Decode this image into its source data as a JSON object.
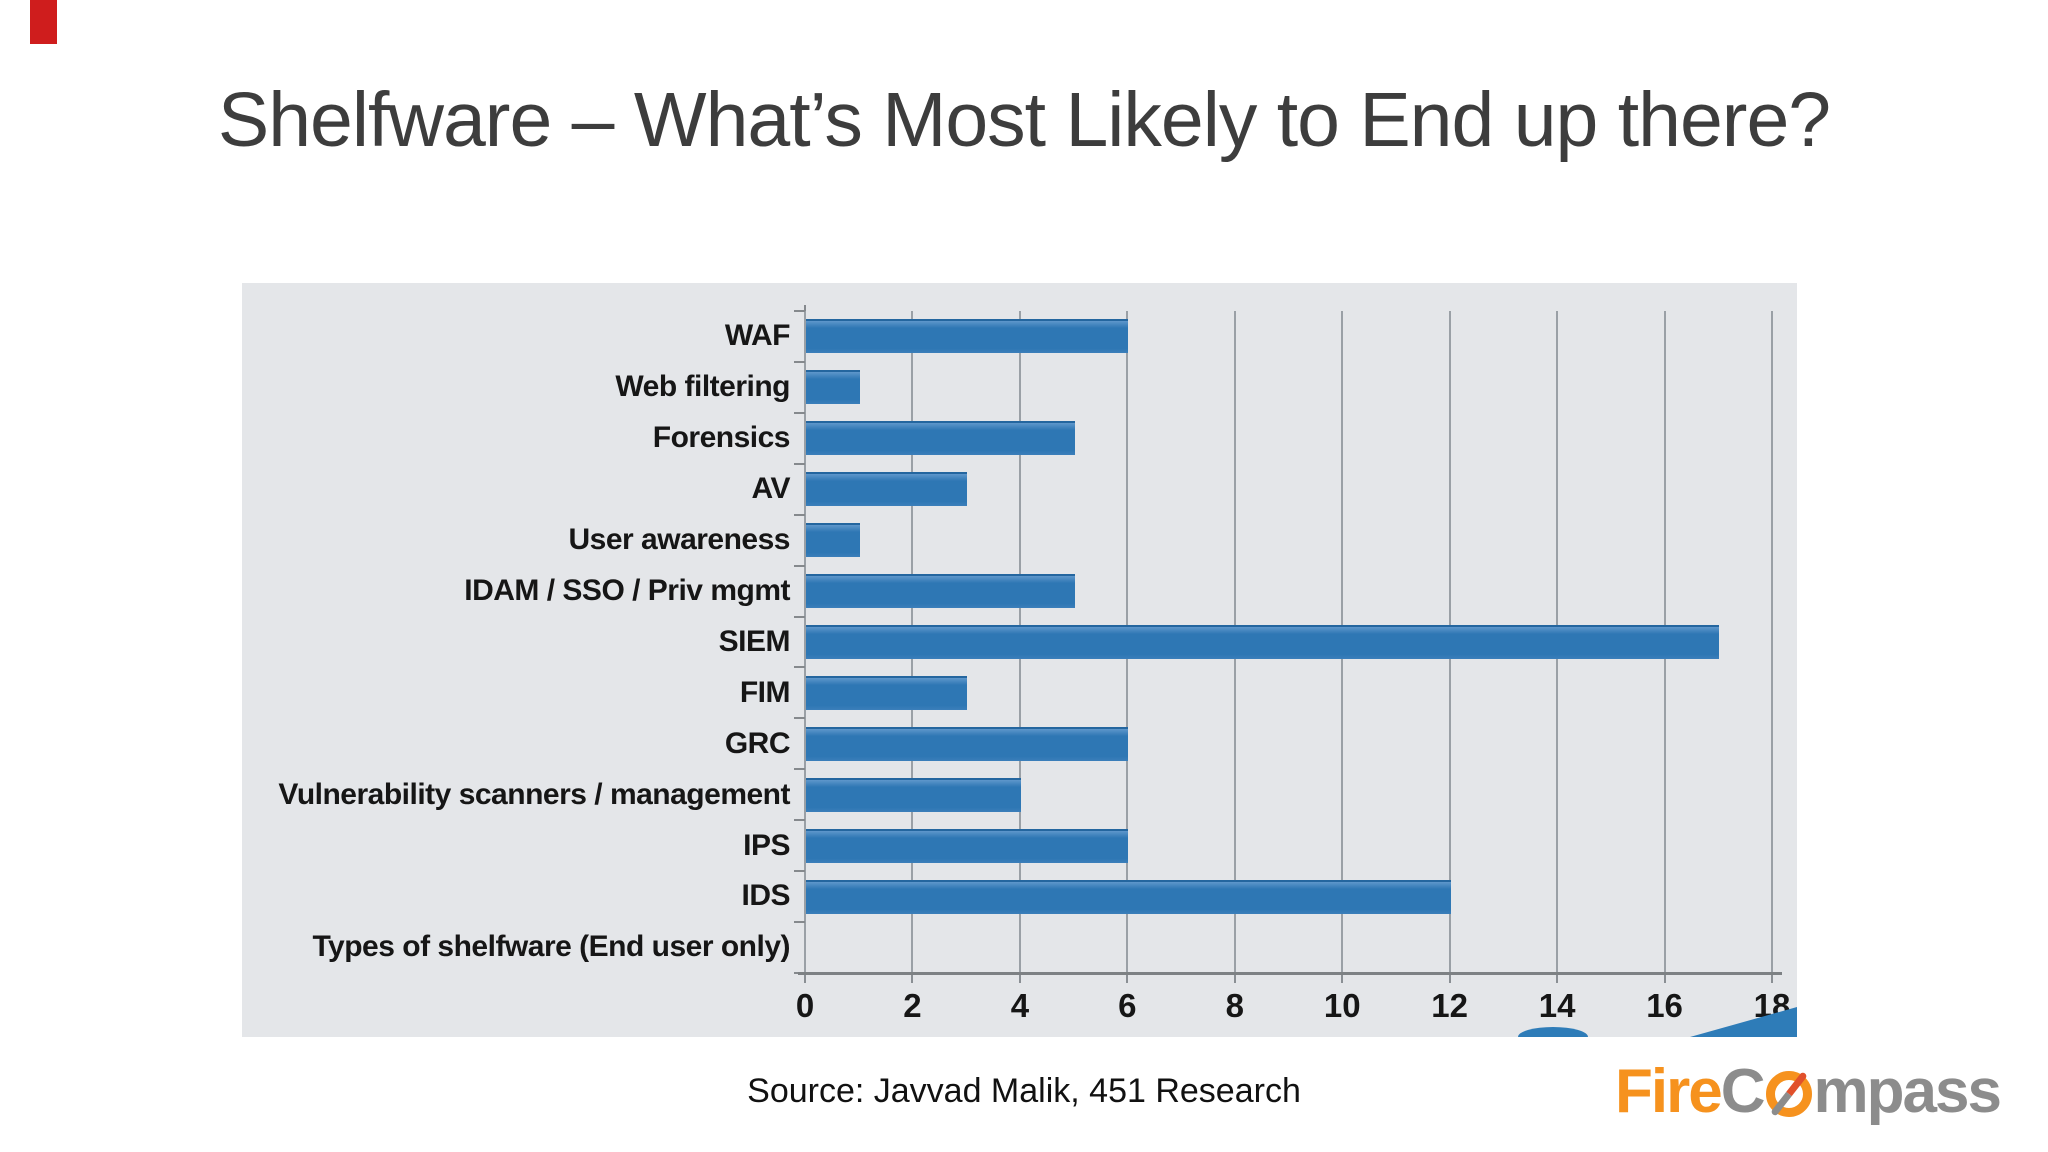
{
  "slide": {
    "title": "Shelfware – What’s Most Likely to End up there?",
    "source": "Source: Javvad Malik, 451 Research",
    "logo": {
      "fire": "Fire",
      "c": "C",
      "mpass": "mpass"
    },
    "colors": {
      "brand_orange": "#f6921e",
      "brand_gray": "#8c8c8c",
      "red_marker": "#cf1d1d",
      "panel_background": "#e4e6e9"
    }
  },
  "chart_data": {
    "type": "bar",
    "orientation": "horizontal",
    "title": "",
    "xlabel": "",
    "ylabel": "",
    "categories": [
      "WAF",
      "Web filtering",
      "Forensics",
      "AV",
      "User awareness",
      "IDAM / SSO / Priv mgmt",
      "SIEM",
      "FIM",
      "GRC",
      "Vulnerability scanners / management",
      "IPS",
      "IDS",
      "Types of shelfware (End user only)"
    ],
    "values": [
      6,
      1,
      5,
      3,
      1,
      5,
      17,
      3,
      6,
      4,
      6,
      12,
      0
    ],
    "xlim": [
      0,
      18
    ],
    "xticks": [
      0,
      2,
      4,
      6,
      8,
      10,
      12,
      14,
      16,
      18
    ],
    "grid": true,
    "legend": false,
    "bar_color": "#2e77b4",
    "note": "Last category row 'Types of shelfware (End user only)' has no bar (value 0)."
  }
}
